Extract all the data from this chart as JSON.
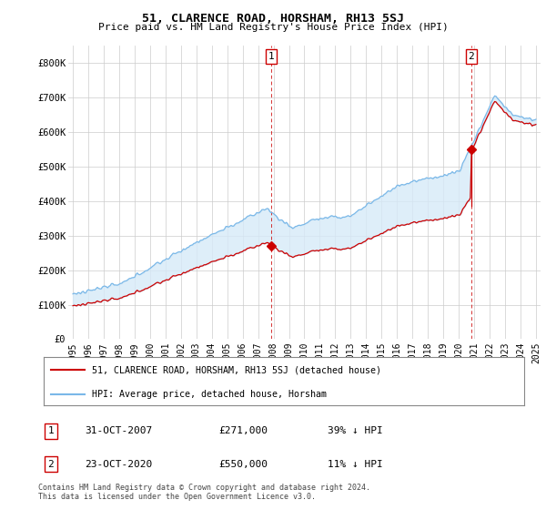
{
  "title": "51, CLARENCE ROAD, HORSHAM, RH13 5SJ",
  "subtitle": "Price paid vs. HM Land Registry's House Price Index (HPI)",
  "ylabel_ticks": [
    "£0",
    "£100K",
    "£200K",
    "£300K",
    "£400K",
    "£500K",
    "£600K",
    "£700K",
    "£800K"
  ],
  "ytick_values": [
    0,
    100000,
    200000,
    300000,
    400000,
    500000,
    600000,
    700000,
    800000
  ],
  "ylim": [
    0,
    850000
  ],
  "hpi_color": "#7ab8e8",
  "hpi_fill_color": "#d6eaf8",
  "price_color": "#cc0000",
  "annotation_box_color": "#cc0000",
  "sale1_year": 2007.83,
  "sale1_price": 271000,
  "sale2_year": 2020.81,
  "sale2_price": 550000,
  "legend_line1": "51, CLARENCE ROAD, HORSHAM, RH13 5SJ (detached house)",
  "legend_line2": "HPI: Average price, detached house, Horsham",
  "background_color": "#ffffff",
  "grid_color": "#cccccc",
  "xlim_left": 1994.7,
  "xlim_right": 2025.3
}
